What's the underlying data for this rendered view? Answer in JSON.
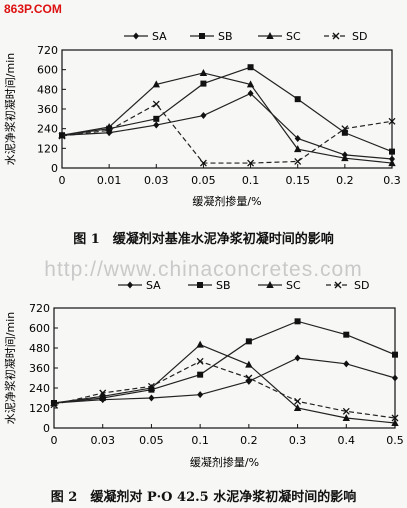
{
  "site_logo": "863P.COM",
  "watermark": "http://www.chinaconcretes.com",
  "colors": {
    "axis": "#111111",
    "line": "#222222"
  },
  "chart_data": [
    {
      "type": "line",
      "caption": "图 1　缓凝剂对基准水泥净浆初凝时间的影响",
      "ylabel": "水泥净浆初凝时间/min",
      "xlabel": "缓凝剂掺量/%",
      "categories": [
        "0",
        "0.01",
        "0.03",
        "0.05",
        "0.1",
        "0.15",
        "0.2",
        "0.3"
      ],
      "ylim": [
        0,
        720
      ],
      "yticks": [
        0,
        120,
        240,
        360,
        480,
        600,
        720
      ],
      "legend": "top",
      "series": [
        {
          "name": "SA",
          "marker": "diamond",
          "values": [
            200,
            215,
            262,
            320,
            455,
            180,
            80,
            55
          ]
        },
        {
          "name": "SB",
          "marker": "square",
          "values": [
            200,
            240,
            300,
            515,
            615,
            420,
            215,
            100
          ]
        },
        {
          "name": "SC",
          "marker": "triangle",
          "values": [
            200,
            250,
            510,
            580,
            510,
            115,
            60,
            30
          ]
        },
        {
          "name": "SD",
          "marker": "x",
          "values": [
            195,
            230,
            390,
            30,
            30,
            40,
            240,
            285
          ]
        }
      ]
    },
    {
      "type": "line",
      "caption": "图 2　缓凝剂对 P·O 42.5 水泥净浆初凝时间的影响",
      "ylabel": "水泥净浆初凝时间/min",
      "xlabel": "缓凝剂掺量/%",
      "categories": [
        "0",
        "0.03",
        "0.05",
        "0.1",
        "0.2",
        "0.3",
        "0.4",
        "0.5"
      ],
      "ylim": [
        0,
        720
      ],
      "yticks": [
        0,
        120,
        240,
        360,
        480,
        600,
        720
      ],
      "legend": "top",
      "series": [
        {
          "name": "SA",
          "marker": "diamond",
          "values": [
            150,
            170,
            180,
            200,
            280,
            420,
            385,
            300
          ]
        },
        {
          "name": "SB",
          "marker": "square",
          "values": [
            150,
            180,
            230,
            320,
            520,
            640,
            560,
            440
          ]
        },
        {
          "name": "SC",
          "marker": "triangle",
          "values": [
            150,
            190,
            240,
            500,
            380,
            120,
            60,
            30
          ]
        },
        {
          "name": "SD",
          "marker": "x",
          "values": [
            140,
            210,
            250,
            400,
            300,
            160,
            100,
            60
          ]
        }
      ]
    }
  ]
}
